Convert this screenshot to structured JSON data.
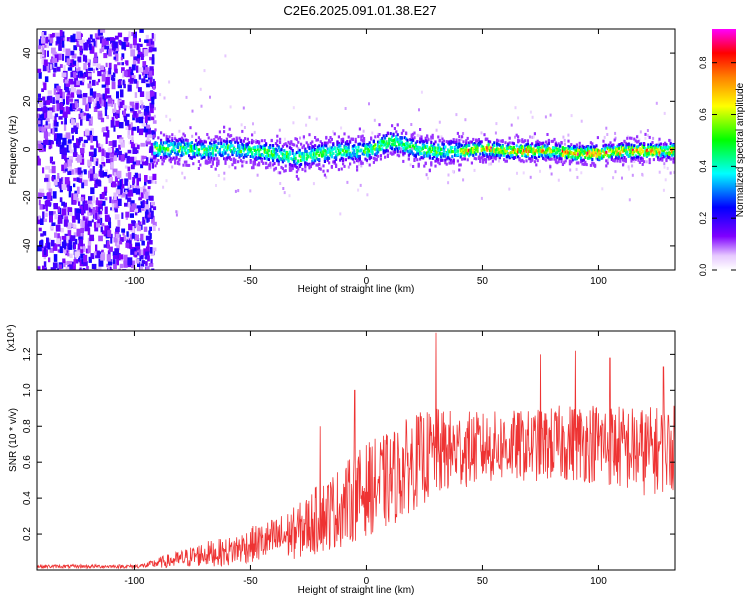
{
  "title": "C2E6.2025.091.01.38.E27",
  "chart_data": [
    {
      "type": "heatmap",
      "xlabel": "Height of straight line (km)",
      "ylabel": "Frequency (Hz)",
      "xlim": [
        -142,
        133
      ],
      "ylim": [
        -50,
        50
      ],
      "xticks": [
        -100,
        -50,
        0,
        50,
        100
      ],
      "yticks": [
        -40,
        -20,
        0,
        20,
        40
      ],
      "colorbar": {
        "label": "Normalized spectral amplitude",
        "range": [
          0,
          0.93
        ],
        "ticks": [
          0.0,
          0.2,
          0.4,
          0.6,
          0.8
        ],
        "colormap": [
          "#ffffff",
          "#7f00ff",
          "#0000ff",
          "#00ffff",
          "#00ff00",
          "#ffff00",
          "#ff8000",
          "#ff0000",
          "#ff00ff"
        ]
      },
      "noise_region": {
        "x": [
          -142,
          -92
        ],
        "frequency_span": [
          -50,
          50
        ]
      },
      "ridge": {
        "x": [
          -92,
          -80,
          -70,
          -60,
          -50,
          -40,
          -30,
          -20,
          -10,
          0,
          5,
          10,
          15,
          20,
          30,
          40,
          50,
          60,
          70,
          80,
          90,
          100,
          110,
          120,
          133
        ],
        "frequency": [
          1,
          1,
          0,
          1,
          0,
          -1,
          -3,
          -1,
          0,
          0,
          2,
          4,
          3,
          1,
          0,
          0,
          1,
          0,
          0,
          0,
          -1,
          -1,
          0,
          0,
          0
        ]
      }
    },
    {
      "type": "line",
      "xlabel": "Height of straight line (km)",
      "ylabel": "SNR (10 * v/v)",
      "y_multiplier": "(x10⁴)",
      "xlim": [
        -142,
        133
      ],
      "ylim": [
        0,
        1.33
      ],
      "xticks": [
        -100,
        -50,
        0,
        50,
        100
      ],
      "yticks": [
        0.2,
        0.4,
        0.6,
        0.8,
        1.0,
        1.2
      ],
      "ytick_labels": [
        "0.2",
        "0.4",
        "0.6",
        "0.8",
        "1.0",
        "1.2"
      ],
      "color": "#ee3333",
      "series": [
        {
          "x": [
            -142,
            -120,
            -100,
            -95,
            -90,
            -80,
            -70,
            -60,
            -50,
            -40,
            -30,
            -20,
            -10,
            0,
            10,
            20,
            30,
            40,
            50,
            60,
            70,
            80,
            90,
            100,
            110,
            120,
            133
          ],
          "mean": [
            0.02,
            0.02,
            0.02,
            0.025,
            0.04,
            0.06,
            0.09,
            0.1,
            0.14,
            0.17,
            0.21,
            0.29,
            0.36,
            0.45,
            0.5,
            0.6,
            0.65,
            0.67,
            0.68,
            0.69,
            0.69,
            0.7,
            0.71,
            0.71,
            0.68,
            0.66,
            0.68
          ],
          "spread": [
            0.01,
            0.01,
            0.01,
            0.015,
            0.03,
            0.05,
            0.07,
            0.08,
            0.1,
            0.12,
            0.15,
            0.2,
            0.23,
            0.26,
            0.27,
            0.27,
            0.25,
            0.22,
            0.2,
            0.2,
            0.2,
            0.21,
            0.22,
            0.23,
            0.24,
            0.25,
            0.24
          ],
          "peaks": [
            [
              30,
              1.32
            ],
            [
              -5,
              1.0
            ],
            [
              -20,
              0.8
            ],
            [
              75,
              1.2
            ],
            [
              90,
              1.22
            ],
            [
              105,
              1.18
            ],
            [
              128,
              1.13
            ]
          ]
        }
      ]
    }
  ]
}
